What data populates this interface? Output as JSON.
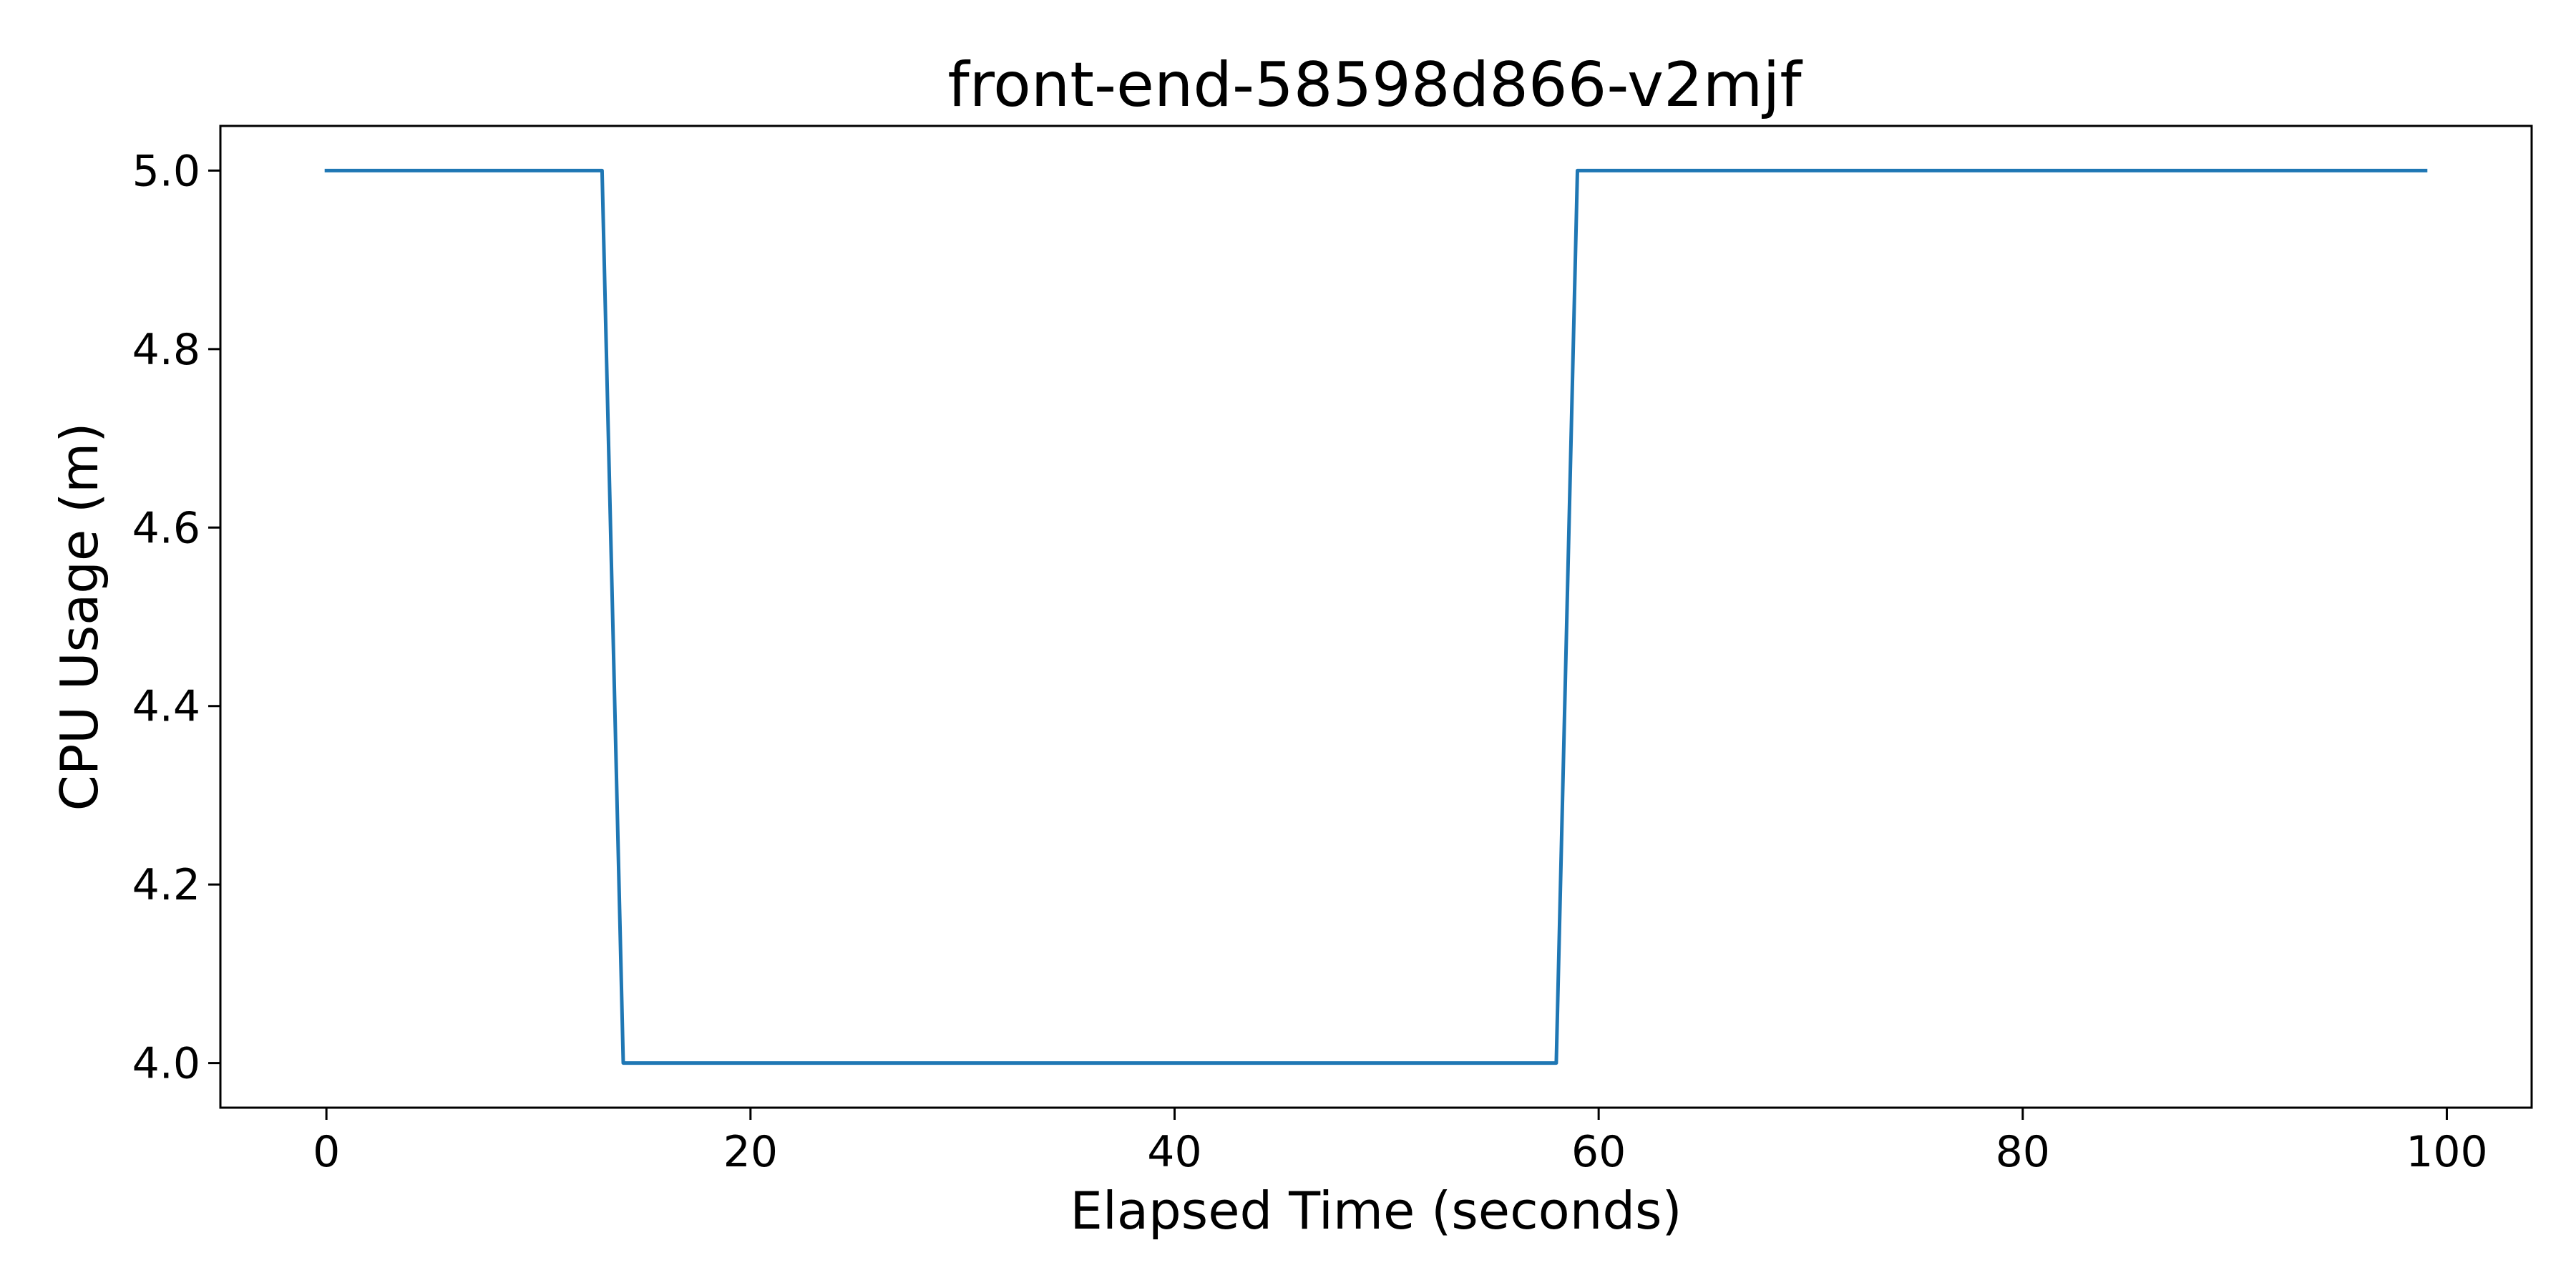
{
  "chart_data": {
    "type": "line",
    "title": "front-end-58598d866-v2mjf",
    "xlabel": "Elapsed Time (seconds)",
    "ylabel": "CPU Usage (m)",
    "xlim": [
      -5,
      104
    ],
    "ylim": [
      3.95,
      5.05
    ],
    "xticks": [
      0,
      20,
      40,
      60,
      80,
      100
    ],
    "xtick_labels": [
      "0",
      "20",
      "40",
      "60",
      "80",
      "100"
    ],
    "yticks": [
      4.0,
      4.2,
      4.4,
      4.6,
      4.8,
      5.0
    ],
    "ytick_labels": [
      "4.0",
      "4.2",
      "4.4",
      "4.6",
      "4.8",
      "5.0"
    ],
    "grid": false,
    "legend": "none",
    "series": [
      {
        "color": "#1f77b4",
        "x": [
          0,
          13,
          14,
          58,
          59,
          99
        ],
        "y": [
          5.0,
          5.0,
          4.0,
          4.0,
          5.0,
          5.0
        ]
      }
    ]
  }
}
